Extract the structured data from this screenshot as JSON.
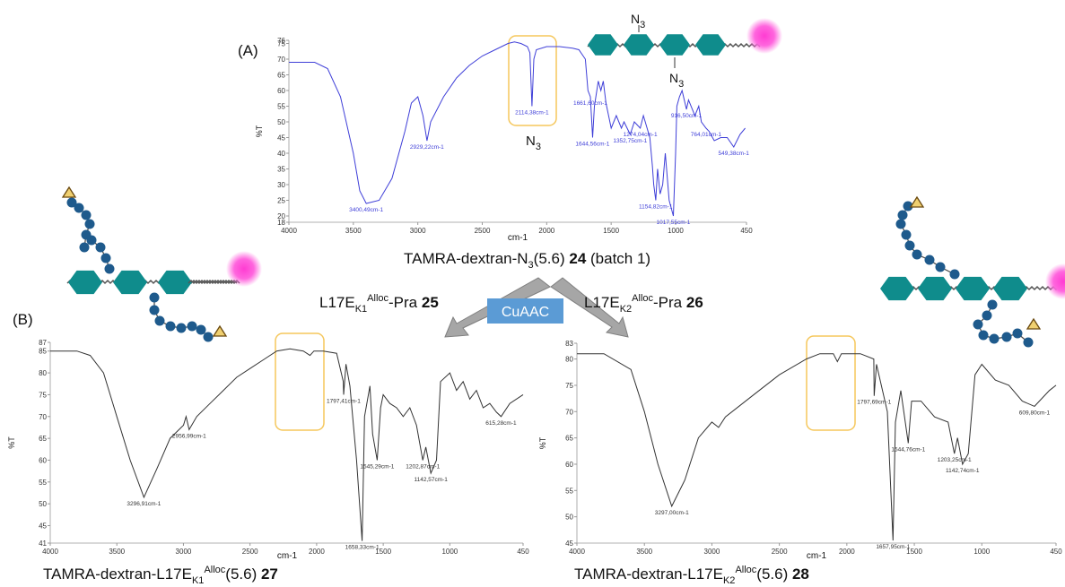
{
  "chart_data": [
    {
      "type": "line",
      "x_label": "cm-1",
      "y_label": "%T",
      "color": "#3f3fd8",
      "xlim": [
        4000,
        450
      ],
      "xticks": [
        4000,
        3500,
        3000,
        2500,
        2000,
        1500,
        1000,
        450
      ],
      "ylim": [
        18,
        76
      ],
      "yticks": [
        18,
        20,
        25,
        30,
        35,
        40,
        45,
        50,
        55,
        60,
        65,
        70,
        75,
        76
      ],
      "x": [
        4000,
        3800,
        3700,
        3600,
        3500,
        3450,
        3400,
        3300,
        3200,
        3100,
        3050,
        3000,
        2960,
        2929,
        2900,
        2800,
        2700,
        2600,
        2500,
        2400,
        2300,
        2250,
        2200,
        2150,
        2130,
        2114,
        2100,
        2080,
        2000,
        1900,
        1800,
        1750,
        1700,
        1680,
        1661,
        1644,
        1630,
        1600,
        1580,
        1561,
        1540,
        1500,
        1460,
        1420,
        1400,
        1352,
        1320,
        1274,
        1250,
        1200,
        1180,
        1170,
        1154,
        1140,
        1120,
        1100,
        1080,
        1050,
        1017,
        1000,
        990,
        970,
        950,
        916,
        900,
        850,
        820,
        800,
        764,
        740,
        700,
        650,
        600,
        549,
        500,
        460
      ],
      "values": [
        69,
        69,
        67,
        58,
        40,
        28,
        24,
        25,
        32,
        47,
        56,
        58,
        52,
        44,
        50,
        58,
        64,
        68,
        71,
        73,
        75,
        75.5,
        75,
        74,
        72,
        55,
        70,
        73,
        74,
        74,
        73.5,
        73,
        70,
        60,
        58,
        45,
        55,
        63,
        60,
        63,
        56,
        48,
        52,
        48,
        50,
        46,
        50,
        48,
        52,
        45,
        36,
        30,
        25,
        35,
        27,
        30,
        40,
        25,
        20,
        40,
        55,
        58,
        60,
        54,
        57,
        52,
        55,
        50,
        48,
        47,
        44,
        45,
        45,
        42,
        46,
        48
      ],
      "annotations": [
        {
          "x": 3400.49,
          "y": 24,
          "label": "3400,49cm-1"
        },
        {
          "x": 2929.22,
          "y": 44,
          "label": "2929,22cm-1"
        },
        {
          "x": 2114.38,
          "y": 55,
          "label": "2114,38cm-1"
        },
        {
          "x": 1661.6,
          "y": 58,
          "label": "1661,60cm-1"
        },
        {
          "x": 1644.56,
          "y": 45,
          "label": "1644,56cm-1"
        },
        {
          "x": 1352.75,
          "y": 46,
          "label": "1352,75cm-1"
        },
        {
          "x": 1274.04,
          "y": 48,
          "label": "1274,04cm-1"
        },
        {
          "x": 1154.82,
          "y": 25,
          "label": "1154,82cm-1"
        },
        {
          "x": 1017.55,
          "y": 20,
          "label": "1017,55cm-1"
        },
        {
          "x": 916.5,
          "y": 54,
          "label": "916,50cm-1"
        },
        {
          "x": 764.01,
          "y": 48,
          "label": "764,01cm-1"
        },
        {
          "x": 549.38,
          "y": 42,
          "label": "549,38cm-1"
        }
      ]
    },
    {
      "type": "line",
      "x_label": "cm-1",
      "y_label": "%T",
      "color": "#333333",
      "xlim": [
        4000,
        450
      ],
      "xticks": [
        4000,
        3500,
        3000,
        2500,
        2000,
        1500,
        1000,
        450
      ],
      "ylim": [
        41,
        87
      ],
      "yticks": [
        41,
        45,
        50,
        55,
        60,
        65,
        70,
        75,
        80,
        85,
        87
      ],
      "x": [
        4000,
        3800,
        3700,
        3600,
        3500,
        3400,
        3296.91,
        3200,
        3100,
        3000,
        2980,
        2956.99,
        2900,
        2800,
        2700,
        2600,
        2500,
        2400,
        2300,
        2200,
        2100,
        2050,
        2020,
        1950,
        1850,
        1800,
        1797.41,
        1780,
        1750,
        1700,
        1658.33,
        1640,
        1600,
        1580,
        1545.29,
        1520,
        1500,
        1450,
        1400,
        1350,
        1300,
        1250,
        1202.87,
        1180,
        1142.57,
        1100,
        1070,
        1000,
        950,
        900,
        850,
        800,
        750,
        700,
        650,
        615.28,
        550,
        450
      ],
      "values": [
        85,
        85,
        84,
        80,
        70,
        60,
        51.5,
        58,
        65,
        68,
        70,
        67,
        70,
        73,
        76,
        79,
        81,
        83,
        85,
        85.5,
        85,
        84,
        85,
        85,
        84.5,
        78,
        75,
        82,
        77,
        60,
        41.5,
        70,
        77,
        66,
        60,
        72,
        75,
        73,
        72,
        70,
        72,
        68,
        60,
        63,
        57,
        60,
        78,
        80,
        76,
        78,
        74,
        76,
        72,
        73,
        71,
        70,
        73,
        75
      ],
      "annotations": [
        {
          "x": 3296.91,
          "y": 51.5,
          "label": "3296,91cm-1"
        },
        {
          "x": 2956.99,
          "y": 67,
          "label": "2956,99cm-1"
        },
        {
          "x": 1797.41,
          "y": 75,
          "label": "1797,41cm-1"
        },
        {
          "x": 1658.33,
          "y": 41.5,
          "label": "1658,33cm-1"
        },
        {
          "x": 1545.29,
          "y": 60,
          "label": "1545,29cm-1"
        },
        {
          "x": 1202.87,
          "y": 60,
          "label": "1202,87cm-1"
        },
        {
          "x": 1142.57,
          "y": 57,
          "label": "1142,57cm-1"
        },
        {
          "x": 615.28,
          "y": 70,
          "label": "615,28cm-1"
        }
      ]
    },
    {
      "type": "line",
      "x_label": "cm-1",
      "y_label": "%T",
      "color": "#333333",
      "xlim": [
        4000,
        450
      ],
      "xticks": [
        4000,
        3500,
        3000,
        2500,
        2000,
        1500,
        1000,
        450
      ],
      "ylim": [
        45,
        83
      ],
      "yticks": [
        45,
        50,
        55,
        60,
        65,
        70,
        75,
        80,
        83
      ],
      "x": [
        4000,
        3800,
        3600,
        3500,
        3400,
        3297,
        3200,
        3100,
        3000,
        2950,
        2900,
        2700,
        2500,
        2300,
        2200,
        2100,
        2070,
        2040,
        1900,
        1800,
        1797.69,
        1780,
        1700,
        1657.95,
        1640,
        1600,
        1544.76,
        1520,
        1450,
        1350,
        1250,
        1203.25,
        1180,
        1142.74,
        1100,
        1050,
        1000,
        900,
        800,
        700,
        609.8,
        500,
        450
      ],
      "values": [
        81,
        81,
        78,
        70,
        60,
        52,
        57,
        65,
        68,
        67,
        69,
        73,
        77,
        80,
        81,
        81,
        79.5,
        81,
        81,
        80,
        73,
        79,
        70,
        45.5,
        68,
        74,
        64,
        72,
        72,
        69,
        68,
        62,
        65,
        60,
        62,
        77,
        79,
        76,
        75,
        72,
        71,
        74,
        75
      ],
      "annotations": [
        {
          "x": 3297.0,
          "y": 52,
          "label": "3297,00cm-1"
        },
        {
          "x": 1797.69,
          "y": 73,
          "label": "1797,69cm-1"
        },
        {
          "x": 1657.95,
          "y": 45.5,
          "label": "1657,95cm-1"
        },
        {
          "x": 1544.76,
          "y": 64,
          "label": "1544,76cm-1"
        },
        {
          "x": 1203.25,
          "y": 62,
          "label": "1203,25cm-1"
        },
        {
          "x": 1142.74,
          "y": 60,
          "label": "1142,74cm-1"
        },
        {
          "x": 609.8,
          "y": 71,
          "label": "609,80cm-1"
        }
      ]
    }
  ],
  "labels": {
    "panel_a": "(A)",
    "panel_b": "(B)",
    "n3_box": [
      "N",
      "3"
    ],
    "n3_top": [
      "N",
      "3"
    ],
    "n3_bottom": [
      "N",
      "3"
    ],
    "caption_a": [
      "TAMRA-dextran-N",
      "3",
      "(5.6) ",
      "24",
      " (batch 1)"
    ],
    "arrow_left": [
      "L17E",
      "K1",
      "Alloc",
      "-Pra ",
      "25"
    ],
    "arrow_right": [
      "L17E",
      "K2",
      "Alloc",
      "-Pra ",
      "26"
    ],
    "cuaac": "CuAAC",
    "caption_b1": [
      "TAMRA-dextran-L17E",
      "K1",
      "Alloc",
      "(5.6) ",
      "27"
    ],
    "caption_b2": [
      "TAMRA-dextran-L17E",
      "K2",
      "Alloc",
      "(5.6) ",
      "28"
    ]
  }
}
